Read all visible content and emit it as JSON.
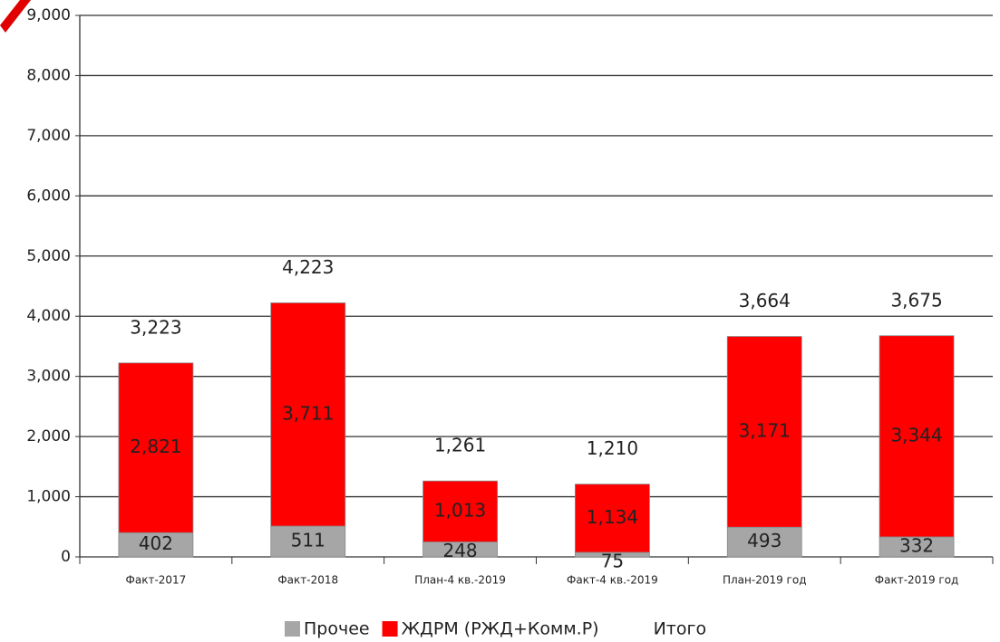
{
  "chart_data": {
    "type": "stacked_bar",
    "categories": [
      "Факт-2017",
      "Факт-2018",
      "План-4 кв.-2019",
      "Факт-4 кв.-2019",
      "План-2019 год",
      "Факт-2019 год"
    ],
    "series": [
      {
        "name": "Прочее",
        "color": "#a6a6a6",
        "values": [
          402,
          511,
          248,
          75,
          493,
          332
        ],
        "value_labels": [
          "402",
          "511",
          "248",
          "75",
          "493",
          "332"
        ]
      },
      {
        "name": "ЖДРМ (РЖД+Комм.Р)",
        "color": "#ff0000",
        "values": [
          2821,
          3711,
          1013,
          1134,
          3171,
          3344
        ],
        "value_labels": [
          "2,821",
          "3,711",
          "1,013",
          "1,134",
          "3,171",
          "3,344"
        ]
      },
      {
        "name": "Итого",
        "values": [
          3223,
          4223,
          1261,
          1210,
          3664,
          3675
        ],
        "value_labels": [
          "3,223",
          "4,223",
          "1,261",
          "1,210",
          "3,664",
          "3,675"
        ]
      }
    ],
    "ylim": [
      0,
      9000
    ],
    "yticks": [
      0,
      {
        "value": 1000,
        "label": "1,000"
      },
      {
        "value": 2000,
        "label": "2,000"
      },
      {
        "value": 3000,
        "label": "3,000"
      },
      {
        "value": 4000,
        "label": "4,000"
      },
      {
        "value": 5000,
        "label": "5,000"
      },
      {
        "value": 6000,
        "label": "6,000"
      },
      {
        "value": 7000,
        "label": "7,000"
      },
      {
        "value": 8000,
        "label": "8,000"
      },
      {
        "value": 9000,
        "label": "9,000"
      }
    ],
    "grid": true,
    "legend": "bottom"
  }
}
